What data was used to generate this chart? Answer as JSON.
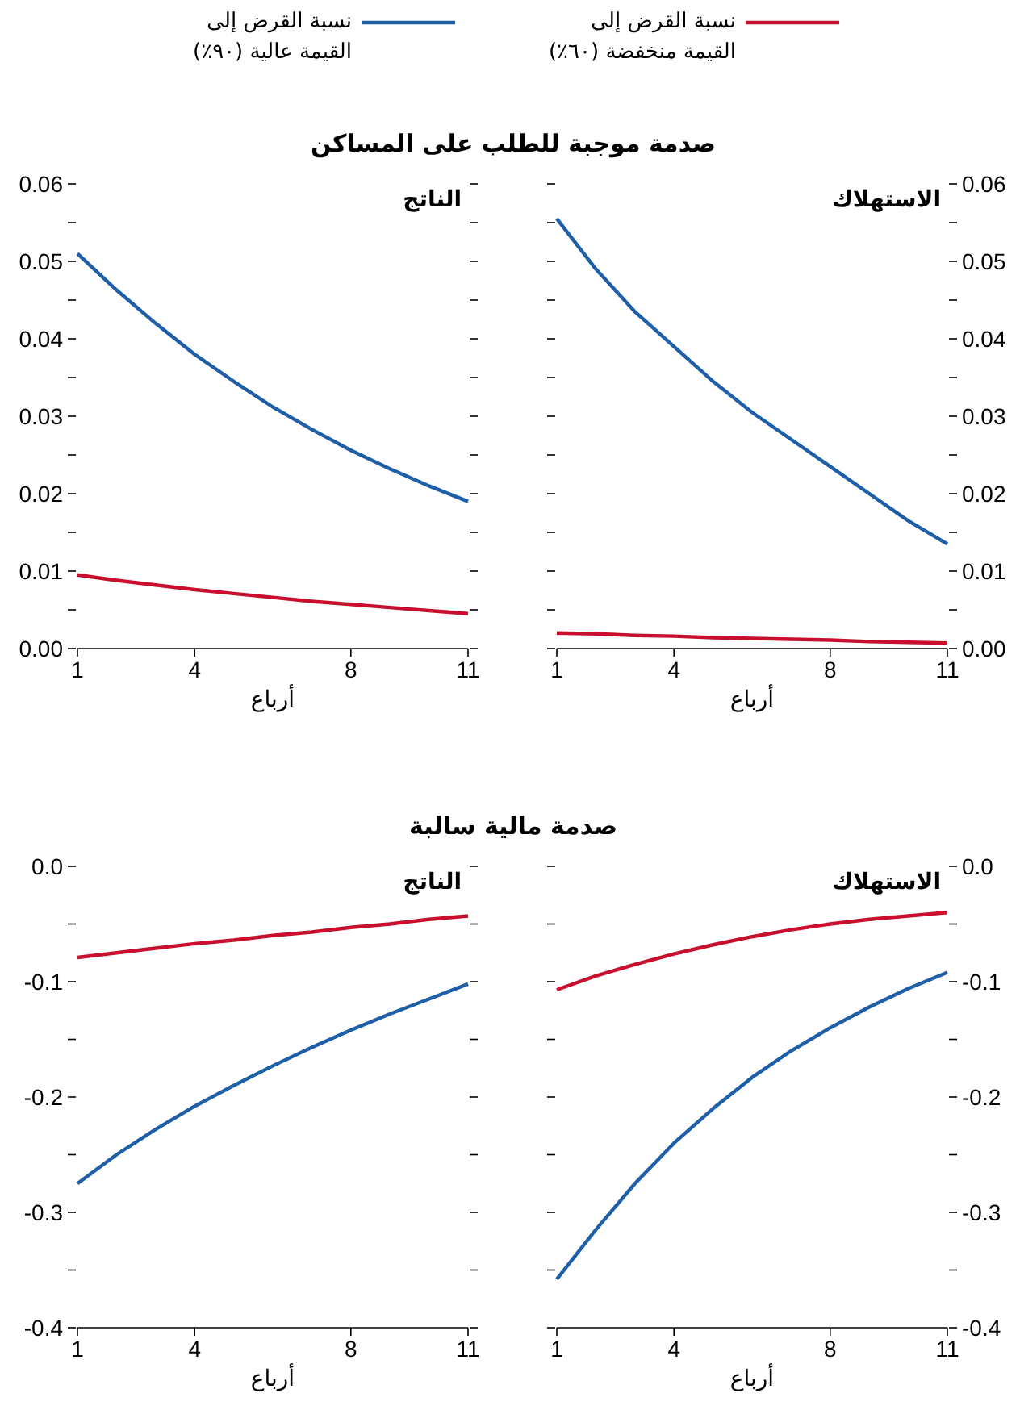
{
  "chart_data": [
    {
      "type": "line",
      "title": "صدمة موجبة للطلب على المساكن",
      "xlabel": "أرباع",
      "annotations": [
        "الناتج"
      ],
      "legend": "top",
      "x": [
        1,
        2,
        3,
        4,
        5,
        6,
        7,
        8,
        9,
        10,
        11
      ],
      "xlim": [
        1,
        11
      ],
      "xticks": [
        1,
        4,
        8,
        11
      ],
      "ylim": [
        0,
        0.06
      ],
      "yticks": [
        {
          "value": 0,
          "label": "0.00"
        },
        {
          "value": 0.005,
          "label": null
        },
        {
          "value": 0.01,
          "label": "0.01"
        },
        {
          "value": 0.015,
          "label": null
        },
        {
          "value": 0.02,
          "label": "0.02"
        },
        {
          "value": 0.025,
          "label": null
        },
        {
          "value": 0.03,
          "label": "0.03"
        },
        {
          "value": 0.035,
          "label": null
        },
        {
          "value": 0.04,
          "label": "0.04"
        },
        {
          "value": 0.045,
          "label": null
        },
        {
          "value": 0.05,
          "label": "0.05"
        },
        {
          "value": 0.055,
          "label": null
        },
        {
          "value": 0.06,
          "label": "0.06"
        }
      ],
      "series": [
        {
          "name": "نسبة القرض إلى القيمة عالية (٩٠٪)",
          "color": "#1f5fa8",
          "values": [
            0.051,
            0.0463,
            0.042,
            0.038,
            0.0345,
            0.0312,
            0.0283,
            0.0256,
            0.0232,
            0.021,
            0.019
          ]
        },
        {
          "name": "نسبة القرض إلى القيمة منخفضة (٦٠٪)",
          "color": "#c8102e",
          "values": [
            0.0095,
            0.0088,
            0.0082,
            0.0076,
            0.0071,
            0.0066,
            0.0061,
            0.0057,
            0.0053,
            0.0049,
            0.0045
          ]
        }
      ]
    },
    {
      "type": "line",
      "xlabel": "أرباع",
      "annotations": [
        "الاستهلاك"
      ],
      "x": [
        1,
        2,
        3,
        4,
        5,
        6,
        7,
        8,
        9,
        10,
        11
      ],
      "xlim": [
        1,
        11
      ],
      "xticks": [
        1,
        4,
        8,
        11
      ],
      "ylim": [
        0,
        0.06
      ],
      "yticks": [
        {
          "value": 0,
          "label": "0.00"
        },
        {
          "value": 0.005,
          "label": null
        },
        {
          "value": 0.01,
          "label": "0.01"
        },
        {
          "value": 0.015,
          "label": null
        },
        {
          "value": 0.02,
          "label": "0.02"
        },
        {
          "value": 0.025,
          "label": null
        },
        {
          "value": 0.03,
          "label": "0.03"
        },
        {
          "value": 0.035,
          "label": null
        },
        {
          "value": 0.04,
          "label": "0.04"
        },
        {
          "value": 0.045,
          "label": null
        },
        {
          "value": 0.05,
          "label": "0.05"
        },
        {
          "value": 0.055,
          "label": null
        },
        {
          "value": 0.06,
          "label": "0.06"
        }
      ],
      "series": [
        {
          "color": "#1f5fa8",
          "values": [
            0.0555,
            0.049,
            0.0435,
            0.039,
            0.0345,
            0.0305,
            0.027,
            0.0235,
            0.02,
            0.0165,
            0.0135
          ]
        },
        {
          "color": "#c8102e",
          "values": [
            0.002,
            0.0019,
            0.0017,
            0.0016,
            0.0014,
            0.0013,
            0.0012,
            0.0011,
            0.0009,
            0.0008,
            0.0007
          ]
        }
      ]
    },
    {
      "type": "line",
      "title": "صدمة مالية سالبة",
      "xlabel": "أرباع",
      "annotations": [
        "الناتج"
      ],
      "x": [
        1,
        2,
        3,
        4,
        5,
        6,
        7,
        8,
        9,
        10,
        11
      ],
      "xlim": [
        1,
        11
      ],
      "xticks": [
        1,
        4,
        8,
        11
      ],
      "ylim": [
        -0.4,
        0
      ],
      "yticks": [
        {
          "value": -0.4,
          "label": "-0.4"
        },
        {
          "value": -0.35,
          "label": null
        },
        {
          "value": -0.3,
          "label": "-0.3"
        },
        {
          "value": -0.25,
          "label": null
        },
        {
          "value": -0.2,
          "label": "-0.2"
        },
        {
          "value": -0.15,
          "label": null
        },
        {
          "value": -0.1,
          "label": "-0.1"
        },
        {
          "value": -0.05,
          "label": null
        },
        {
          "value": 0,
          "label": "0.0"
        }
      ],
      "series": [
        {
          "color": "#1f5fa8",
          "values": [
            -0.275,
            -0.25,
            -0.228,
            -0.208,
            -0.19,
            -0.173,
            -0.157,
            -0.142,
            -0.128,
            -0.115,
            -0.102
          ]
        },
        {
          "color": "#c8102e",
          "values": [
            -0.079,
            -0.075,
            -0.071,
            -0.067,
            -0.064,
            -0.06,
            -0.057,
            -0.053,
            -0.05,
            -0.046,
            -0.043
          ]
        }
      ]
    },
    {
      "type": "line",
      "xlabel": "أرباع",
      "annotations": [
        "الاستهلاك"
      ],
      "x": [
        1,
        2,
        3,
        4,
        5,
        6,
        7,
        8,
        9,
        10,
        11
      ],
      "xlim": [
        1,
        11
      ],
      "xticks": [
        1,
        4,
        8,
        11
      ],
      "ylim": [
        -0.4,
        0
      ],
      "yticks": [
        {
          "value": -0.4,
          "label": "-0.4"
        },
        {
          "value": -0.35,
          "label": null
        },
        {
          "value": -0.3,
          "label": "-0.3"
        },
        {
          "value": -0.25,
          "label": null
        },
        {
          "value": -0.2,
          "label": "-0.2"
        },
        {
          "value": -0.15,
          "label": null
        },
        {
          "value": -0.1,
          "label": "-0.1"
        },
        {
          "value": -0.05,
          "label": null
        },
        {
          "value": 0,
          "label": "0.0"
        }
      ],
      "series": [
        {
          "color": "#1f5fa8",
          "values": [
            -0.358,
            -0.315,
            -0.275,
            -0.24,
            -0.21,
            -0.183,
            -0.16,
            -0.14,
            -0.122,
            -0.106,
            -0.092
          ]
        },
        {
          "color": "#c8102e",
          "values": [
            -0.107,
            -0.095,
            -0.085,
            -0.076,
            -0.068,
            -0.061,
            -0.055,
            -0.05,
            -0.046,
            -0.043,
            -0.04
          ]
        }
      ]
    }
  ]
}
